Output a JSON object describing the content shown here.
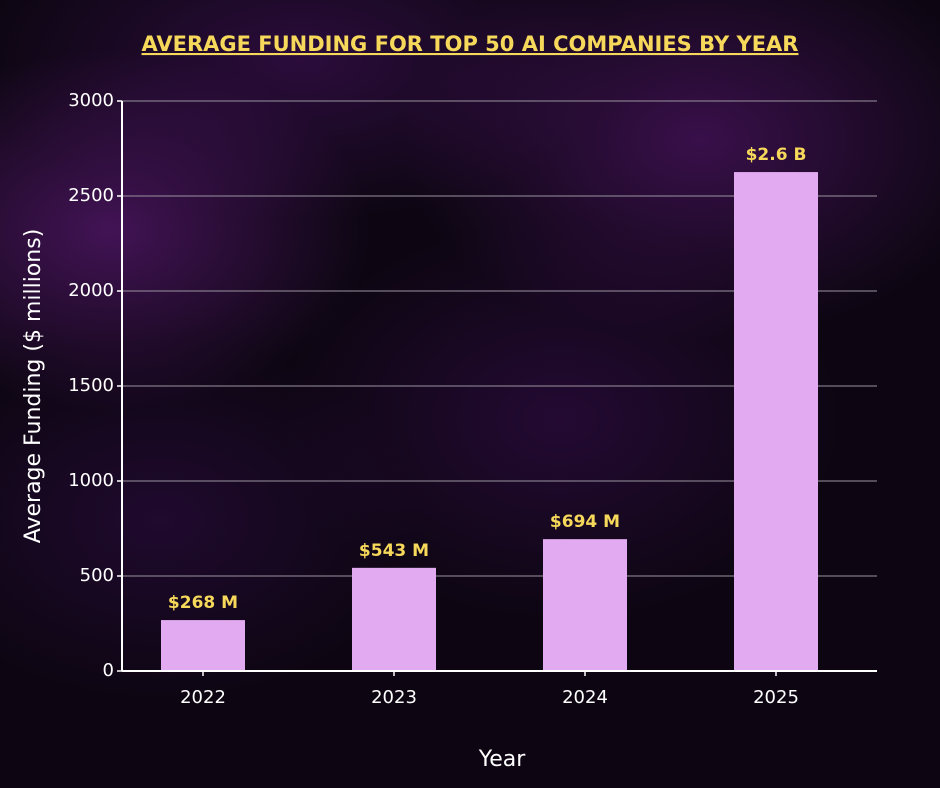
{
  "chart_data": {
    "type": "bar",
    "title": "AVERAGE FUNDING FOR TOP 50 AI COMPANIES BY YEAR",
    "x_label": "Year",
    "y_label": "Average Funding ($ millions)",
    "categories": [
      "2022",
      "2023",
      "2024",
      "2025"
    ],
    "values": [
      268,
      543,
      694,
      2626
    ],
    "value_labels": [
      "$268 M",
      "$543 M",
      "$694 M",
      "$2.6 B"
    ],
    "color": "#e2aaf0",
    "ylim": [
      0,
      3000
    ],
    "yticks": [
      0,
      500,
      1000,
      1500,
      2000,
      2500,
      3000
    ],
    "grid": true
  }
}
